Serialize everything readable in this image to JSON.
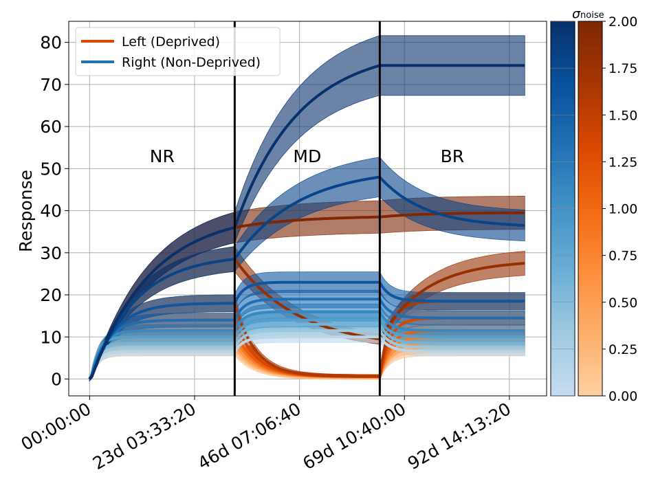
{
  "chart_data": {
    "type": "line",
    "title": "",
    "xlabel": "",
    "ylabel": "Response",
    "ylim": [
      -4,
      85
    ],
    "grid": true,
    "legend_placement": "top-left",
    "x_ticks": [
      {
        "value": 0,
        "label": "00:00:00"
      },
      {
        "value": 23.14815,
        "label": "23d 03:33:20"
      },
      {
        "value": 46.2963,
        "label": "46d 07:06:40"
      },
      {
        "value": 69.44444,
        "label": "69d 10:40:00"
      },
      {
        "value": 92.59259,
        "label": "92d 14:13:20"
      }
    ],
    "x_unit": "days",
    "xlim": [
      -4.6,
      100.8
    ],
    "y_ticks": [
      0,
      10,
      20,
      30,
      40,
      50,
      60,
      70,
      80
    ],
    "phase_boundaries": [
      32,
      64
    ],
    "phases": [
      {
        "label": "NR",
        "x": 16,
        "y": 53
      },
      {
        "label": "MD",
        "x": 48,
        "y": 53
      },
      {
        "label": "BR",
        "x": 80,
        "y": 53
      }
    ],
    "legend": [
      {
        "label": "Left (Deprived)",
        "color": "#d94801"
      },
      {
        "label": "Right (Non-Deprived)",
        "color": "#2171b5"
      }
    ],
    "colorbar": {
      "label": "σ",
      "label_subscript": "noise",
      "min": 0.0,
      "max": 2.0,
      "ticks": [
        "0.00",
        "0.25",
        "0.50",
        "0.75",
        "1.00",
        "1.25",
        "1.50",
        "1.75",
        "2.00"
      ],
      "blue_stops": [
        "#c6dbef",
        "#9ecae1",
        "#6baed6",
        "#4292c6",
        "#2171b5",
        "#08519c",
        "#08306b"
      ],
      "orange_stops": [
        "#fdd0a2",
        "#fdae6b",
        "#fd8d3c",
        "#f16913",
        "#d94801",
        "#a63603",
        "#7f2704"
      ]
    },
    "series": [
      {
        "eye": "left",
        "sigma": 0.1,
        "values": {
          "nr": 6.5,
          "md_end": 0.3,
          "br_end": 6.5
        }
      },
      {
        "eye": "left",
        "sigma": 0.35,
        "values": {
          "nr": 7.5,
          "md_end": 0.4,
          "br_end": 7.5
        }
      },
      {
        "eye": "left",
        "sigma": 0.6,
        "values": {
          "nr": 8.5,
          "md_end": 0.5,
          "br_end": 8.5
        }
      },
      {
        "eye": "left",
        "sigma": 0.85,
        "values": {
          "nr": 10,
          "md_end": 0.5,
          "br_end": 10
        }
      },
      {
        "eye": "left",
        "sigma": 1.1,
        "values": {
          "nr": 11.5,
          "md_end": 0.6,
          "br_end": 11.5
        }
      },
      {
        "eye": "left",
        "sigma": 1.35,
        "values": {
          "nr": 14,
          "md_end": 0.6,
          "br_end": 14.5
        }
      },
      {
        "eye": "left",
        "sigma": 1.6,
        "values": {
          "nr": 18,
          "md_end": 0.6,
          "br_end": 18.5
        }
      },
      {
        "eye": "left",
        "sigma": 1.8,
        "values": {
          "nr": 28.5,
          "md_end": 9.5,
          "br_end": 27.5
        }
      },
      {
        "eye": "left",
        "sigma": 2.0,
        "values": {
          "nr": 36,
          "md_end": 38.5,
          "br_end": 39.5
        }
      },
      {
        "eye": "right",
        "sigma": 0.1,
        "values": {
          "nr": 6.5,
          "md_end": 10,
          "br_end": 6.5
        }
      },
      {
        "eye": "right",
        "sigma": 0.35,
        "values": {
          "nr": 7.5,
          "md_end": 11.5,
          "br_end": 7.5
        }
      },
      {
        "eye": "right",
        "sigma": 0.6,
        "values": {
          "nr": 8.5,
          "md_end": 13,
          "br_end": 8.5
        }
      },
      {
        "eye": "right",
        "sigma": 0.85,
        "values": {
          "nr": 10,
          "md_end": 14,
          "br_end": 10
        }
      },
      {
        "eye": "right",
        "sigma": 1.1,
        "values": {
          "nr": 11.5,
          "md_end": 16,
          "br_end": 11.5
        }
      },
      {
        "eye": "right",
        "sigma": 1.35,
        "values": {
          "nr": 14,
          "md_end": 19,
          "br_end": 14.5
        }
      },
      {
        "eye": "right",
        "sigma": 1.6,
        "values": {
          "nr": 18,
          "md_end": 23,
          "br_end": 18.5
        }
      },
      {
        "eye": "right",
        "sigma": 1.8,
        "values": {
          "nr": 28.5,
          "md_end": 48,
          "br_end": 36.5
        }
      },
      {
        "eye": "right",
        "sigma": 2.0,
        "values": {
          "nr": 36,
          "md_end": 74.5,
          "br_end": 74.5
        }
      }
    ]
  }
}
